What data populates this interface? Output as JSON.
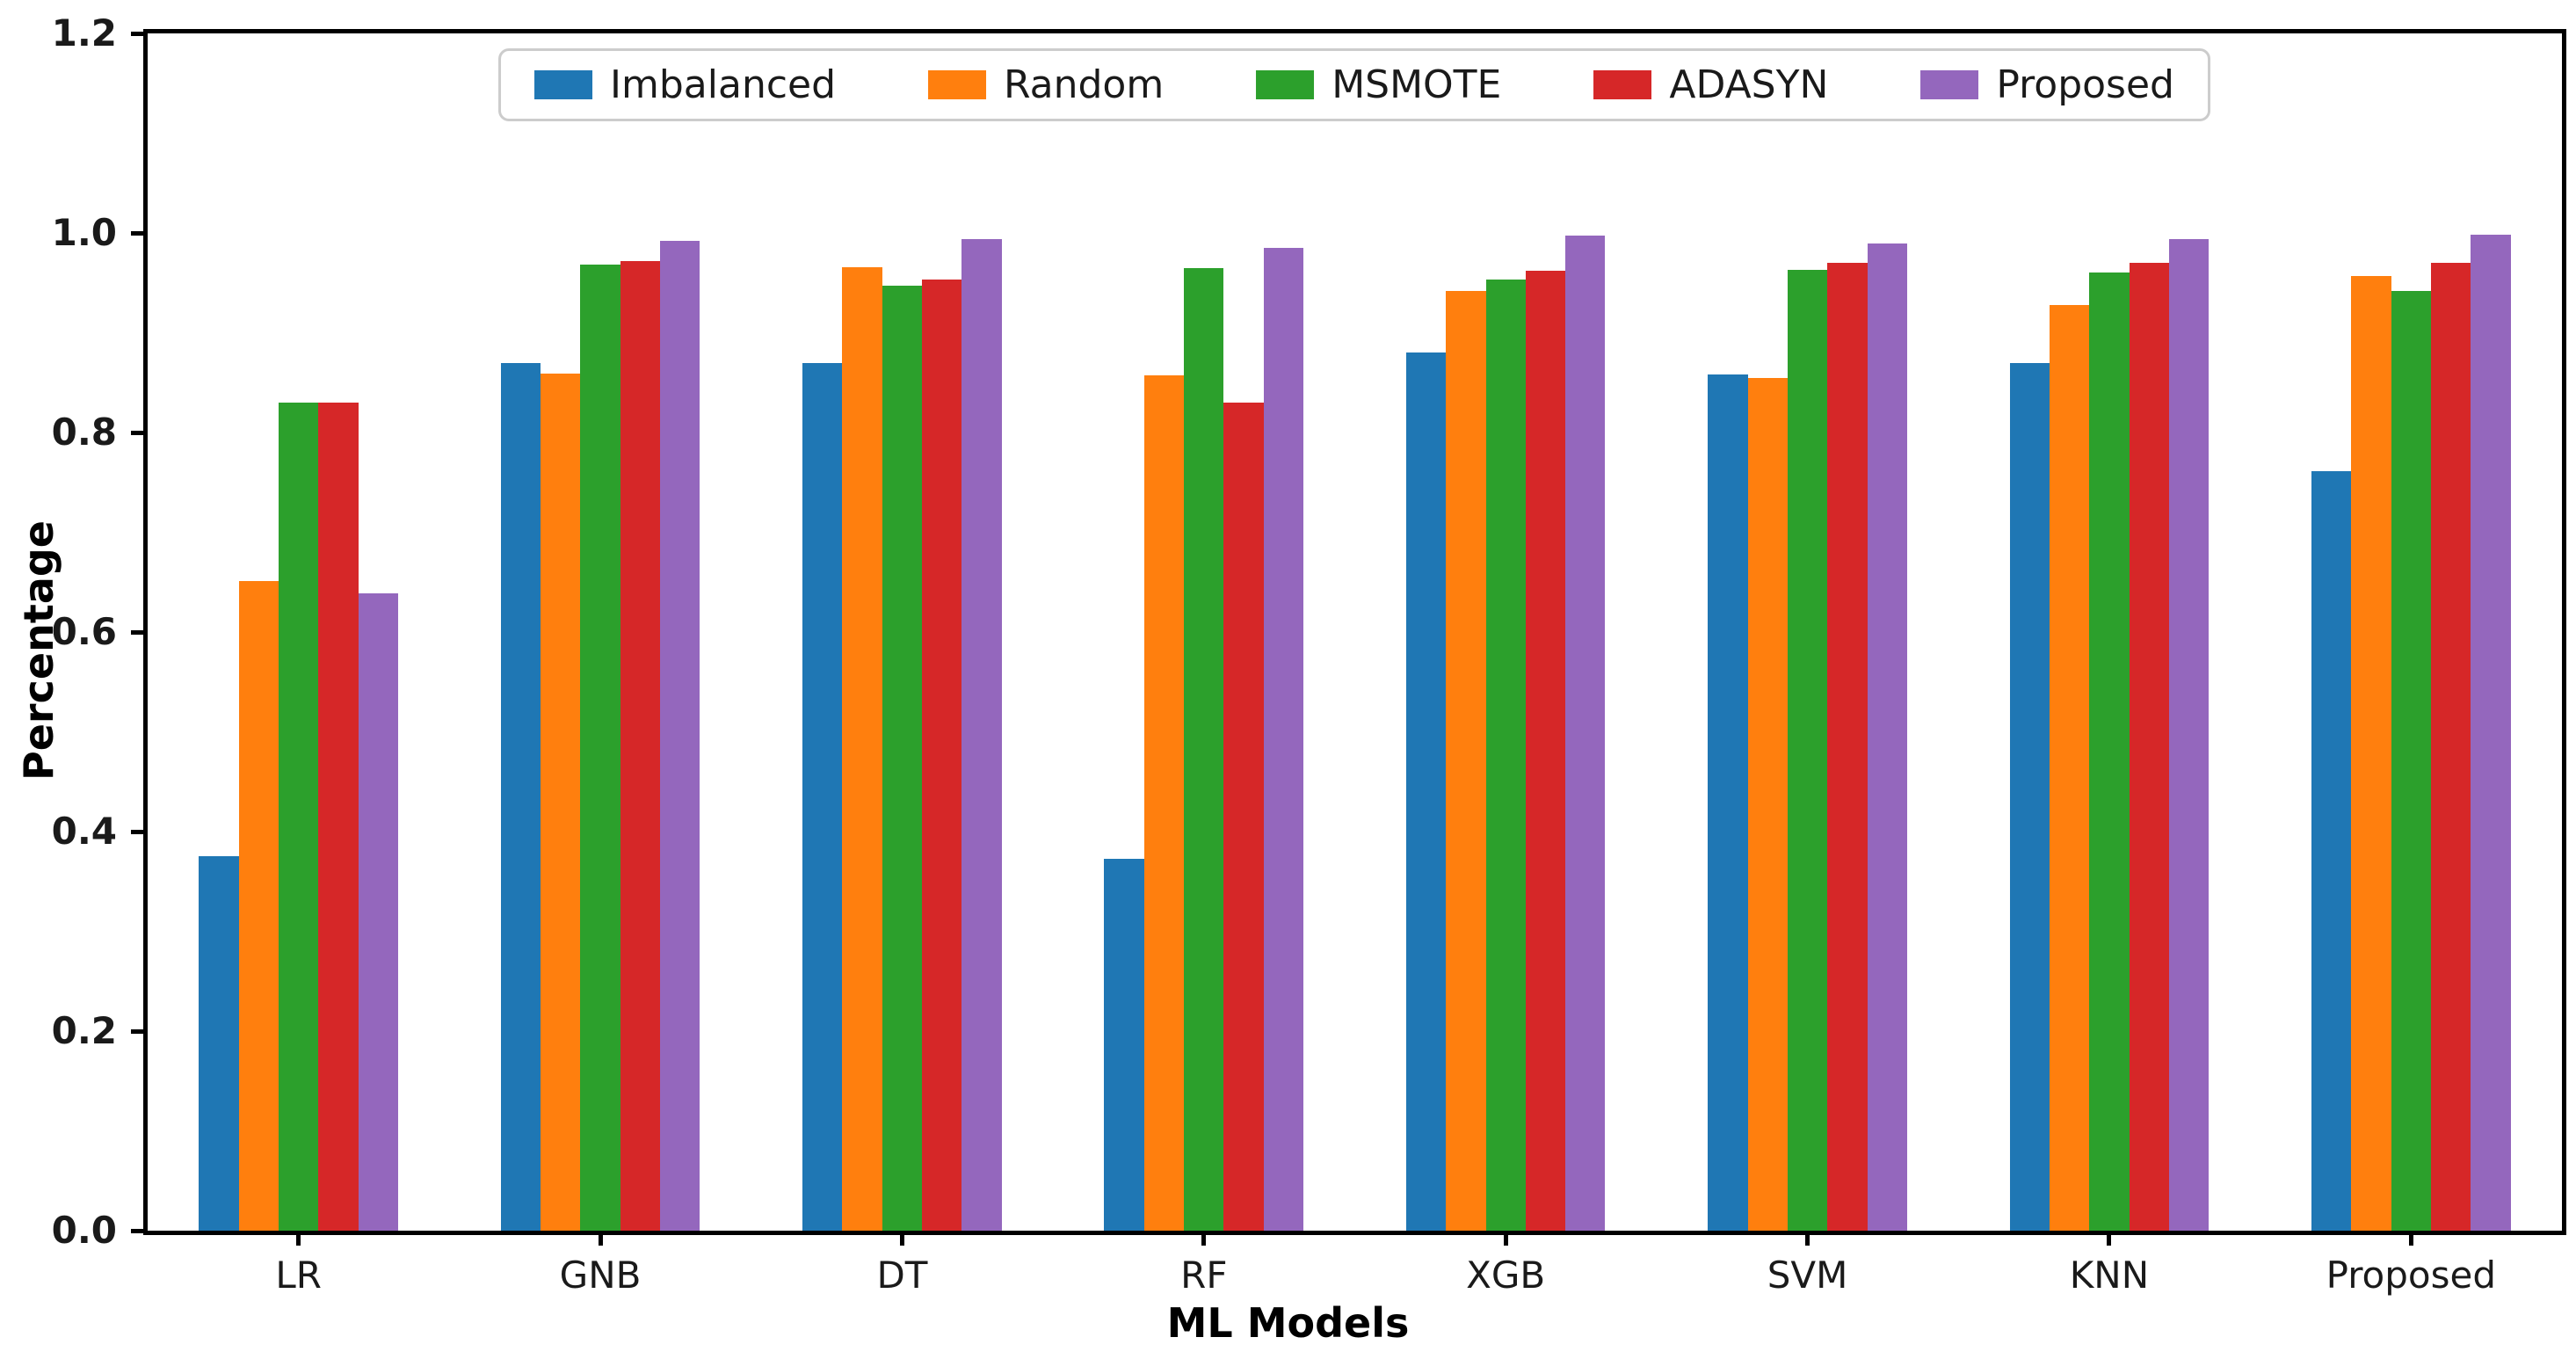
{
  "chart_data": {
    "type": "bar",
    "title": "",
    "xlabel": "ML Models",
    "ylabel": "Percentage",
    "ylim": [
      0,
      1.2
    ],
    "yticks": [
      0.0,
      0.2,
      0.4,
      0.6,
      0.8,
      1.0,
      1.2
    ],
    "grid": false,
    "legend_position": "upper center",
    "categories": [
      "LR",
      "GNB",
      "DT",
      "RF",
      "XGB",
      "SVM",
      "KNN",
      "Proposed"
    ],
    "series": [
      {
        "name": "Imbalanced",
        "color": "#1f77b4",
        "values": [
          0.375,
          0.87,
          0.87,
          0.373,
          0.88,
          0.858,
          0.87,
          0.761
        ]
      },
      {
        "name": "Random",
        "color": "#ff7f0e",
        "values": [
          0.651,
          0.859,
          0.966,
          0.857,
          0.942,
          0.855,
          0.928,
          0.957
        ]
      },
      {
        "name": "MSMOTE",
        "color": "#2ca02c",
        "values": [
          0.83,
          0.968,
          0.947,
          0.965,
          0.953,
          0.963,
          0.96,
          0.942
        ]
      },
      {
        "name": "ADASYN",
        "color": "#d62728",
        "values": [
          0.83,
          0.972,
          0.953,
          0.83,
          0.962,
          0.97,
          0.97,
          0.97
        ]
      },
      {
        "name": "Proposed",
        "color": "#9467bd",
        "values": [
          0.639,
          0.992,
          0.994,
          0.985,
          0.997,
          0.989,
          0.994,
          0.998
        ]
      }
    ],
    "style": {
      "spine_color": "#000000",
      "legend_border_color": "#cccccc",
      "background": "#ffffff"
    }
  }
}
